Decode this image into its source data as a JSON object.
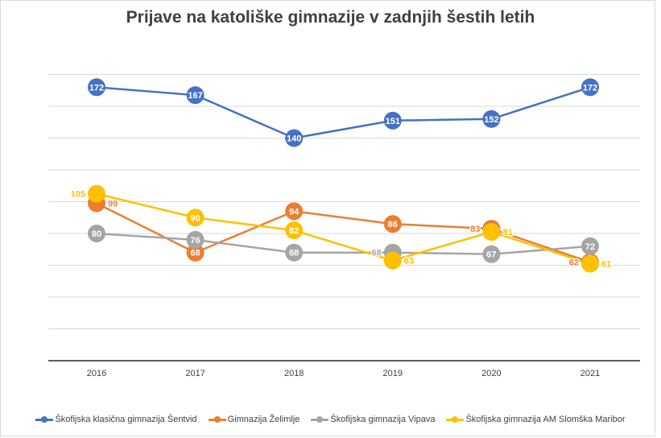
{
  "chart_data": {
    "type": "line",
    "title": "Prijave na katoliške gimnazije v zadnjih šestih letih",
    "xlabel": "",
    "ylabel": "",
    "categories": [
      "2016",
      "2017",
      "2018",
      "2019",
      "2020",
      "2021"
    ],
    "ylim": [
      0,
      200
    ],
    "grid": true,
    "grid_step": 20,
    "legend": "bottom",
    "series": [
      {
        "name": "Škofijska klasična gimnazija Šentvid",
        "color": "#4472c4",
        "values": [
          172,
          167,
          140,
          151,
          152,
          172
        ]
      },
      {
        "name": "Gimnazija Želimlje",
        "color": "#ed7d31",
        "values": [
          99,
          68,
          94,
          86,
          83,
          62
        ]
      },
      {
        "name": "Škofijska gimnazija Vipava",
        "color": "#a5a5a5",
        "values": [
          80,
          76,
          68,
          68,
          67,
          72
        ]
      },
      {
        "name": "Škofijska gimnazija AM Slomška Maribor",
        "color": "#ffc000",
        "values": [
          105,
          90,
          82,
          63,
          81,
          61
        ]
      }
    ]
  }
}
